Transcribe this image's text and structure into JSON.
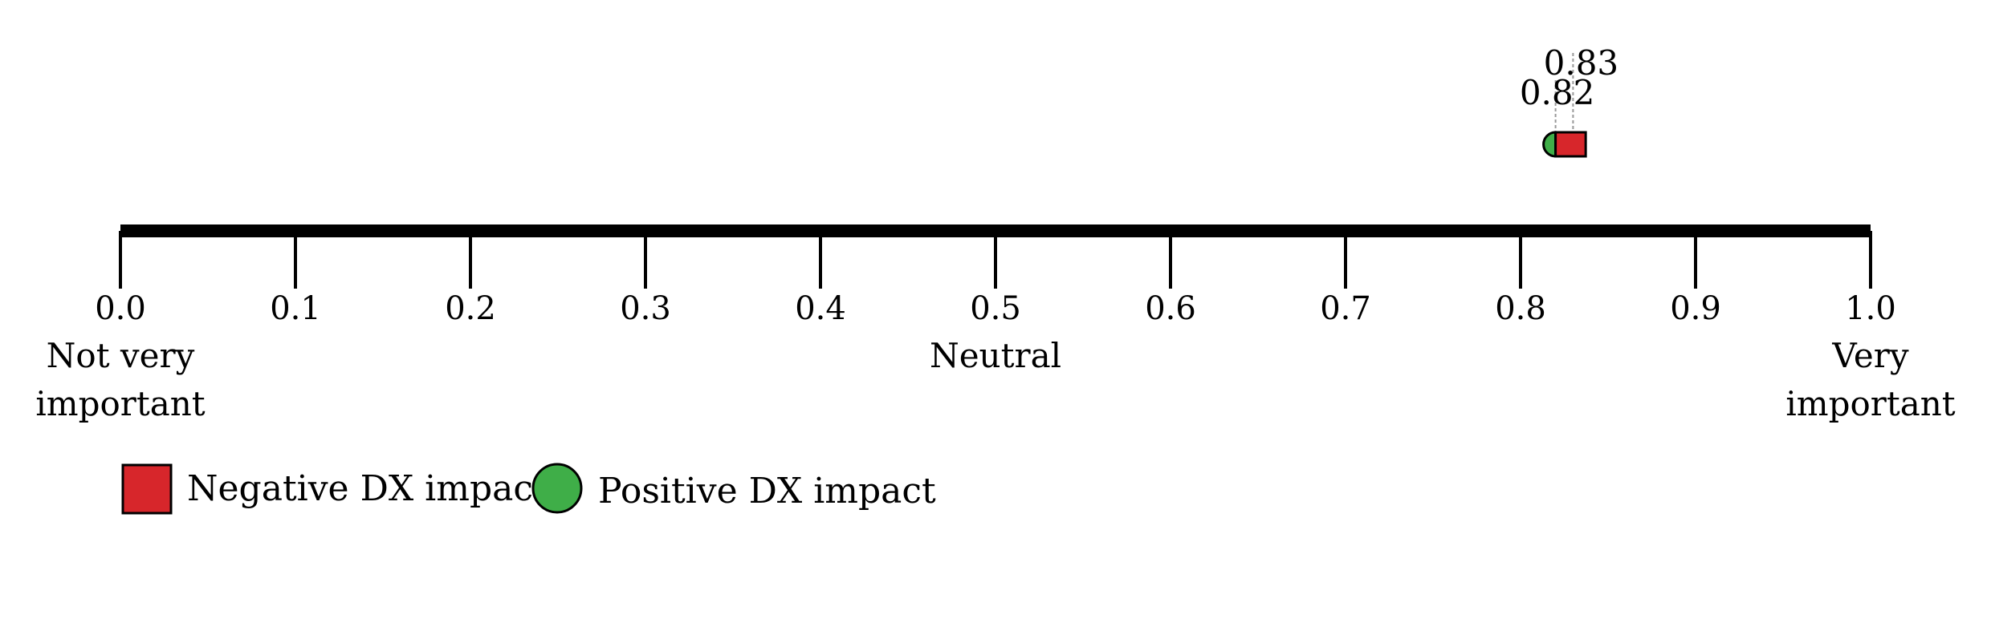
{
  "chart_data": {
    "type": "scatter",
    "title": "",
    "xlabel": "",
    "ylabel": "",
    "xlim": [
      0.0,
      1.0
    ],
    "ticks": [
      "0.0",
      "0.1",
      "0.2",
      "0.3",
      "0.4",
      "0.5",
      "0.6",
      "0.7",
      "0.8",
      "0.9",
      "1.0"
    ],
    "anchors": [
      {
        "at": 0.0,
        "lines": [
          "Not very",
          "important"
        ]
      },
      {
        "at": 0.5,
        "lines": [
          "Neutral"
        ]
      },
      {
        "at": 1.0,
        "lines": [
          "Very",
          "important"
        ]
      }
    ],
    "series": [
      {
        "name": "Negative DX impact",
        "shape": "square",
        "color": "#d7262b",
        "values": [
          0.83
        ],
        "labels": [
          "0.83"
        ]
      },
      {
        "name": "Positive DX impact",
        "shape": "circle",
        "color": "#3fae48",
        "values": [
          0.82
        ],
        "labels": [
          "0.82"
        ]
      }
    ],
    "legend": {
      "placement": "bottom-left"
    },
    "grid": false
  }
}
